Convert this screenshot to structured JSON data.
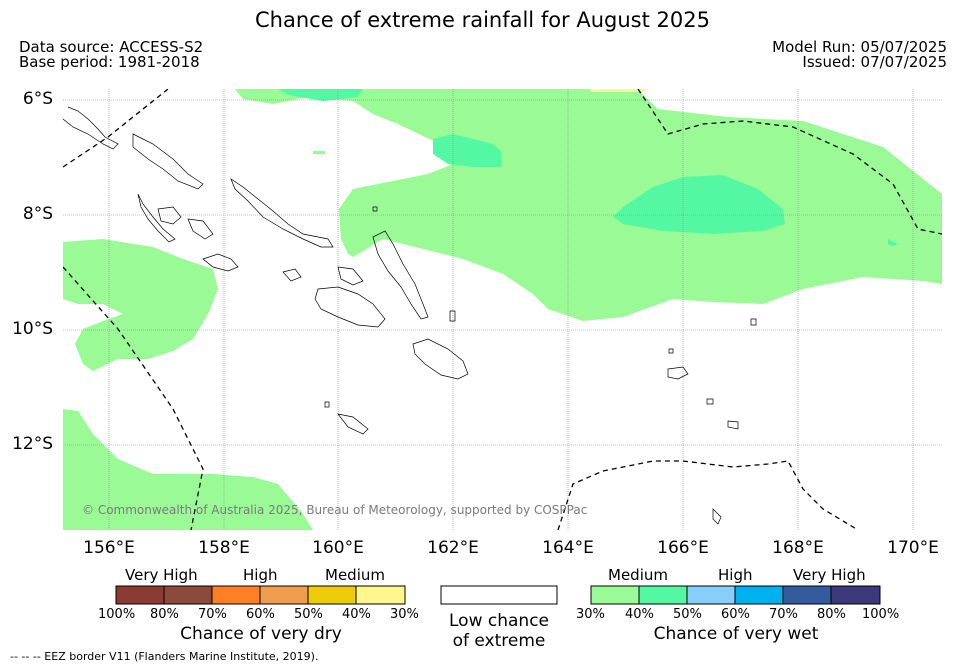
{
  "title": "Chance of extreme rainfall for August 2025",
  "data_source": "Data source: ACCESS-S2",
  "base_period": "Base period: 1981-2018",
  "model_run": "Model Run: 05/07/2025",
  "issued": "Issued: 07/07/2025",
  "lat_labels": [
    "6°S",
    "8°S",
    "10°S",
    "12°S"
  ],
  "lon_labels": [
    "156°E",
    "158°E",
    "160°E",
    "162°E",
    "164°E",
    "166°E",
    "168°E",
    "170°E"
  ],
  "copyright": "© Commonwealth of Australia 2025, Bureau of Meteorology, supported by COSPPac",
  "footnote": "-- -- -- EEZ border V11 (Flanders Marine Institute, 2019).",
  "colors": {
    "dry": [
      "#8b3a35",
      "#8b4a3c",
      "#ff7f24",
      "#ef9e4e",
      "#eecb0b",
      "#fdf78c"
    ],
    "wet": [
      "#9afb96",
      "#55f8a2",
      "#87cefa",
      "#00b0ef",
      "#335b9d",
      "#3c3879"
    ],
    "land_outline": "#000000",
    "grid": "#888888"
  },
  "legend": {
    "dry": {
      "categories": [
        "Very High",
        "High",
        "Medium"
      ],
      "ticks": [
        "100%",
        "80%",
        "70%",
        "60%",
        "50%",
        "40%",
        "30%"
      ],
      "caption": "Chance of very dry"
    },
    "low": {
      "caption_line1": "Low chance",
      "caption_line2": "of extreme"
    },
    "wet": {
      "categories": [
        "Medium",
        "High",
        "Very High"
      ],
      "ticks": [
        "30%",
        "40%",
        "50%",
        "60%",
        "70%",
        "80%",
        "100%"
      ],
      "caption": "Chance of very wet"
    }
  }
}
